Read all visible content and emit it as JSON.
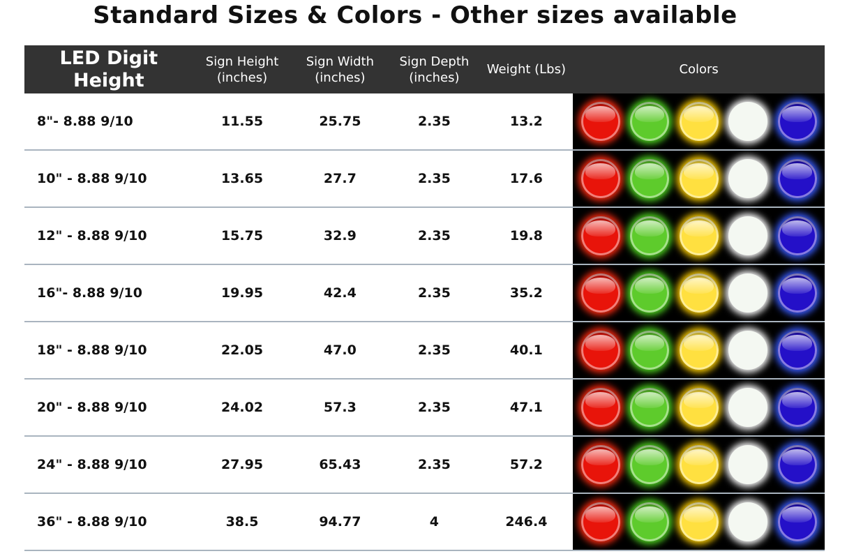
{
  "title": "Standard Sizes & Colors - Other sizes available",
  "headers": {
    "digit_height": "LED Digit Height",
    "sign_height": "Sign Height (inches)",
    "sign_width": "Sign Width (inches)",
    "sign_depth": "Sign Depth (inches)",
    "weight": "Weight (Lbs)",
    "colors": "Colors"
  },
  "led_colors": [
    {
      "name": "red",
      "color": "#e8140a",
      "glow": "#ff2a10"
    },
    {
      "name": "green",
      "color": "#5ecb2c",
      "glow": "#4fd620"
    },
    {
      "name": "yellow",
      "color": "#ffe040",
      "glow": "#ffd000"
    },
    {
      "name": "white",
      "color": "#f4f8f2",
      "glow": "#ffffff"
    },
    {
      "name": "blue",
      "color": "#2410c8",
      "glow": "#3a5cff"
    }
  ],
  "rows": [
    {
      "size": "8\"- 8.88 9/10",
      "height": "11.55",
      "width": "25.75",
      "depth": "2.35",
      "weight": "13.2"
    },
    {
      "size": "10\" - 8.88 9/10",
      "height": "13.65",
      "width": "27.7",
      "depth": "2.35",
      "weight": "17.6"
    },
    {
      "size": "12\" - 8.88 9/10",
      "height": "15.75",
      "width": "32.9",
      "depth": "2.35",
      "weight": "19.8"
    },
    {
      "size": "16\"- 8.88 9/10",
      "height": "19.95",
      "width": "42.4",
      "depth": "2.35",
      "weight": "35.2"
    },
    {
      "size": "18\" - 8.88 9/10",
      "height": "22.05",
      "width": "47.0",
      "depth": "2.35",
      "weight": "40.1"
    },
    {
      "size": "20\" - 8.88 9/10",
      "height": "24.02",
      "width": "57.3",
      "depth": "2.35",
      "weight": "47.1"
    },
    {
      "size": "24\" - 8.88 9/10",
      "height": "27.95",
      "width": "65.43",
      "depth": "2.35",
      "weight": "57.2"
    },
    {
      "size": "36\" - 8.88 9/10",
      "height": "38.5",
      "width": "94.77",
      "depth": "4",
      "weight": "246.4"
    }
  ]
}
